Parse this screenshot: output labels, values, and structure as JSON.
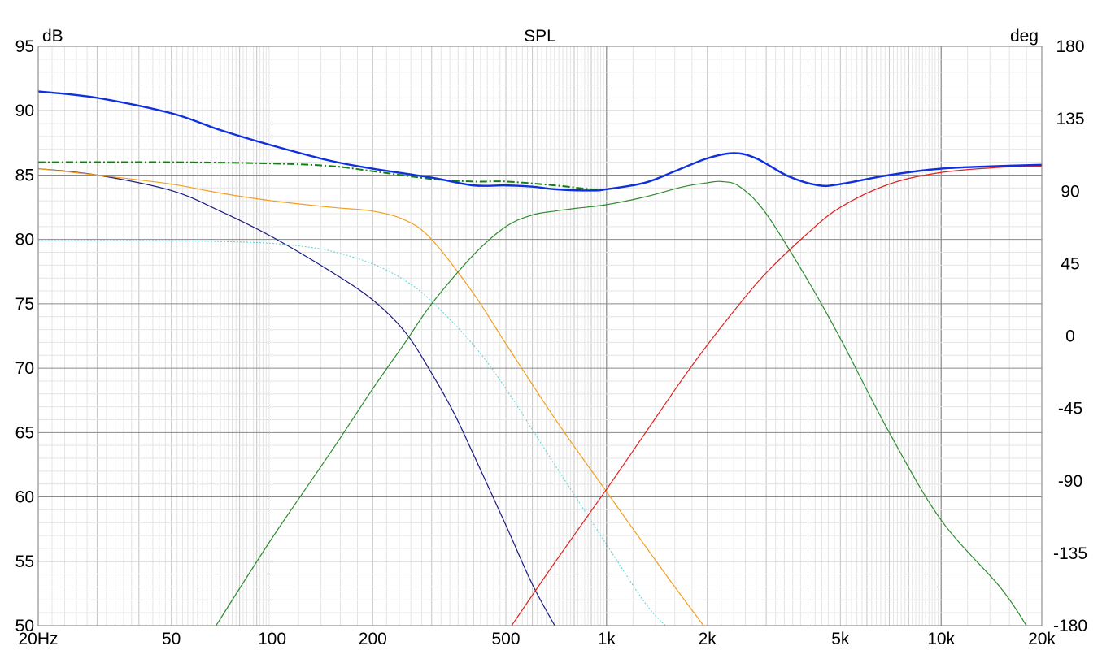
{
  "chart_data": {
    "type": "line",
    "title": "SPL",
    "ylabel_left": "dB",
    "ylabel_right": "deg",
    "x_scale": "log",
    "xlim": [
      20,
      20000
    ],
    "ylim": [
      50,
      95
    ],
    "y2lim": [
      -180,
      180
    ],
    "grid": true,
    "x_ticks": [
      {
        "value": 20,
        "label": "20Hz"
      },
      {
        "value": 50,
        "label": "50"
      },
      {
        "value": 100,
        "label": "100"
      },
      {
        "value": 200,
        "label": "200"
      },
      {
        "value": 500,
        "label": "500"
      },
      {
        "value": 1000,
        "label": "1k"
      },
      {
        "value": 2000,
        "label": "2k"
      },
      {
        "value": 5000,
        "label": "5k"
      },
      {
        "value": 10000,
        "label": "10k"
      },
      {
        "value": 20000,
        "label": "20k"
      }
    ],
    "y_ticks": [
      "50",
      "55",
      "60",
      "65",
      "70",
      "75",
      "80",
      "85",
      "90",
      "95"
    ],
    "y2_ticks": [
      "-180",
      "-135",
      "-90",
      "-45",
      "0",
      "45",
      "90",
      "135",
      "180"
    ],
    "series": [
      {
        "color": "#1a1a80",
        "style": "solid",
        "points": [
          [
            20,
            85.5
          ],
          [
            30,
            85.0
          ],
          [
            50,
            83.8
          ],
          [
            70,
            82.2
          ],
          [
            100,
            80.2
          ],
          [
            150,
            77.5
          ],
          [
            200,
            75.3
          ],
          [
            250,
            72.8
          ],
          [
            300,
            69.6
          ],
          [
            350,
            66.5
          ],
          [
            400,
            63.3
          ],
          [
            500,
            57.8
          ],
          [
            600,
            53.2
          ],
          [
            700,
            50.0
          ]
        ]
      },
      {
        "color": "#5ad0d0",
        "style": "dotted",
        "points": [
          [
            20,
            79.9
          ],
          [
            50,
            79.9
          ],
          [
            80,
            79.8
          ],
          [
            100,
            79.7
          ],
          [
            120,
            79.5
          ],
          [
            150,
            79.1
          ],
          [
            200,
            78.1
          ],
          [
            250,
            76.8
          ],
          [
            300,
            75.2
          ],
          [
            400,
            71.8
          ],
          [
            500,
            68.4
          ],
          [
            700,
            62.5
          ],
          [
            1000,
            56.3
          ],
          [
            1300,
            51.8
          ],
          [
            1500,
            50.0
          ]
        ]
      },
      {
        "color": "#f0a020",
        "style": "solid",
        "points": [
          [
            20,
            85.5
          ],
          [
            30,
            85.0
          ],
          [
            50,
            84.3
          ],
          [
            70,
            83.6
          ],
          [
            100,
            83.0
          ],
          [
            150,
            82.5
          ],
          [
            200,
            82.2
          ],
          [
            250,
            81.5
          ],
          [
            300,
            80.0
          ],
          [
            400,
            75.8
          ],
          [
            500,
            71.9
          ],
          [
            700,
            66.1
          ],
          [
            1000,
            60.4
          ],
          [
            1500,
            54.0
          ],
          [
            1950,
            50.0
          ]
        ]
      },
      {
        "color": "#2e8b2e",
        "style": "solid",
        "points": [
          [
            68,
            50.0
          ],
          [
            100,
            56.8
          ],
          [
            150,
            63.5
          ],
          [
            200,
            68.4
          ],
          [
            250,
            72.0
          ],
          [
            300,
            75.0
          ],
          [
            400,
            78.8
          ],
          [
            500,
            81.0
          ],
          [
            600,
            81.9
          ],
          [
            700,
            82.2
          ],
          [
            800,
            82.4
          ],
          [
            1000,
            82.7
          ],
          [
            1300,
            83.3
          ],
          [
            1700,
            84.1
          ],
          [
            2000,
            84.4
          ],
          [
            2200,
            84.5
          ],
          [
            2500,
            84.1
          ],
          [
            3000,
            82.0
          ],
          [
            4000,
            76.8
          ],
          [
            5000,
            72.3
          ],
          [
            7000,
            65.0
          ],
          [
            10000,
            58.2
          ],
          [
            15000,
            53.0
          ],
          [
            18000,
            50.0
          ]
        ]
      },
      {
        "color": "#e02020",
        "style": "solid",
        "points": [
          [
            520,
            50.0
          ],
          [
            700,
            54.9
          ],
          [
            1000,
            60.6
          ],
          [
            1300,
            64.9
          ],
          [
            1700,
            69.3
          ],
          [
            2000,
            71.8
          ],
          [
            2500,
            75.0
          ],
          [
            3000,
            77.4
          ],
          [
            4000,
            80.5
          ],
          [
            5000,
            82.5
          ],
          [
            7000,
            84.3
          ],
          [
            10000,
            85.2
          ],
          [
            15000,
            85.6
          ],
          [
            20000,
            85.7
          ]
        ]
      },
      {
        "color": "#108010",
        "style": "dashdot",
        "points": [
          [
            20,
            86.0
          ],
          [
            50,
            86.0
          ],
          [
            100,
            85.9
          ],
          [
            150,
            85.7
          ],
          [
            200,
            85.3
          ],
          [
            300,
            84.7
          ],
          [
            400,
            84.5
          ],
          [
            500,
            84.5
          ],
          [
            700,
            84.2
          ],
          [
            900,
            83.9
          ],
          [
            1000,
            83.9
          ],
          [
            1300,
            84.4
          ],
          [
            1600,
            85.3
          ],
          [
            2000,
            86.3
          ],
          [
            2400,
            86.7
          ],
          [
            2800,
            86.3
          ],
          [
            3500,
            84.9
          ],
          [
            4300,
            84.2
          ],
          [
            5000,
            84.3
          ],
          [
            7000,
            85.0
          ],
          [
            10000,
            85.5
          ],
          [
            15000,
            85.7
          ],
          [
            20000,
            85.8
          ]
        ]
      },
      {
        "color": "#1030e0",
        "style": "solid",
        "points": [
          [
            20,
            91.5
          ],
          [
            30,
            91.0
          ],
          [
            50,
            89.8
          ],
          [
            70,
            88.5
          ],
          [
            100,
            87.3
          ],
          [
            150,
            86.1
          ],
          [
            200,
            85.5
          ],
          [
            300,
            84.8
          ],
          [
            400,
            84.2
          ],
          [
            500,
            84.2
          ],
          [
            600,
            84.1
          ],
          [
            700,
            83.9
          ],
          [
            900,
            83.8
          ],
          [
            1000,
            83.9
          ],
          [
            1300,
            84.4
          ],
          [
            1600,
            85.3
          ],
          [
            2000,
            86.3
          ],
          [
            2400,
            86.7
          ],
          [
            2800,
            86.3
          ],
          [
            3500,
            84.9
          ],
          [
            4300,
            84.2
          ],
          [
            5000,
            84.3
          ],
          [
            7000,
            85.0
          ],
          [
            10000,
            85.5
          ],
          [
            15000,
            85.7
          ],
          [
            20000,
            85.8
          ]
        ]
      }
    ]
  }
}
